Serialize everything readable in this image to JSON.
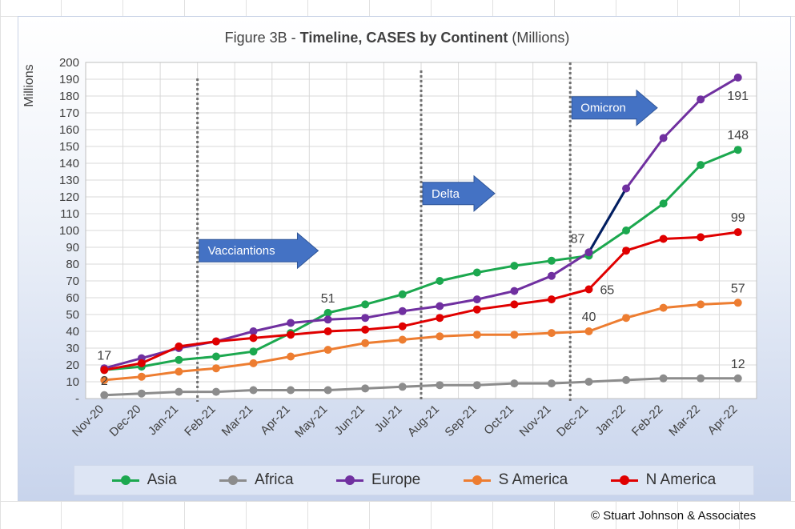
{
  "chart_data": {
    "type": "line",
    "title_prefix": "Figure 3B - ",
    "title_bold": "Timeline, CASES by Continent",
    "title_suffix": " (Millions)",
    "ylabel": "Millions",
    "ylim": [
      0,
      200
    ],
    "y_ticks": [
      "-",
      "10",
      "20",
      "30",
      "40",
      "50",
      "60",
      "70",
      "80",
      "90",
      "100",
      "110",
      "120",
      "130",
      "140",
      "150",
      "160",
      "170",
      "180",
      "190",
      "200"
    ],
    "categories": [
      "Nov-20",
      "Dec-20",
      "Jan-21",
      "Feb-21",
      "Mar-21",
      "Apr-21",
      "May-21",
      "Jun-21",
      "Jul-21",
      "Aug-21",
      "Sep-21",
      "Oct-21",
      "Nov-21",
      "Dec-21",
      "Jan-22",
      "Feb-22",
      "Mar-22",
      "Apr-22"
    ],
    "grid": true,
    "legend_position": "bottom",
    "series": [
      {
        "name": "Asia",
        "color": "#1ca84f",
        "values": [
          17,
          19,
          23,
          25,
          28,
          39,
          51,
          56,
          62,
          70,
          75,
          79,
          82,
          85,
          100,
          116,
          139,
          148
        ]
      },
      {
        "name": "Africa",
        "color": "#8c8c8c",
        "values": [
          2,
          3,
          4,
          4,
          5,
          5,
          5,
          6,
          7,
          8,
          8,
          9,
          9,
          10,
          11,
          12,
          12,
          12
        ]
      },
      {
        "name": "Europe",
        "color": "#7030a0",
        "values": [
          18,
          24,
          30,
          34,
          40,
          45,
          47,
          48,
          52,
          55,
          59,
          64,
          73,
          87,
          125,
          155,
          178,
          191
        ]
      },
      {
        "name": "S America",
        "color": "#ed7d31",
        "values": [
          11,
          13,
          16,
          18,
          21,
          25,
          29,
          33,
          35,
          37,
          38,
          38,
          39,
          40,
          48,
          54,
          56,
          57
        ]
      },
      {
        "name": "N America",
        "color": "#e00000",
        "values": [
          17,
          21,
          31,
          34,
          36,
          38,
          40,
          41,
          43,
          48,
          53,
          56,
          59,
          65,
          88,
          95,
          96,
          99
        ]
      }
    ],
    "connector": {
      "color": "#002060",
      "from_index": 13,
      "to_index": 14,
      "series": "Europe"
    },
    "annotations": [
      {
        "text": "17",
        "x": "Nov-20",
        "y": 17,
        "anchor": "above"
      },
      {
        "text": "2",
        "x": "Nov-20",
        "y": 2,
        "anchor": "above"
      },
      {
        "text": "51",
        "x": "May-21",
        "y": 51,
        "anchor": "above"
      },
      {
        "text": "87",
        "x": "Dec-21",
        "y": 87,
        "anchor": "above-left"
      },
      {
        "text": "65",
        "x": "Dec-21",
        "y": 65,
        "anchor": "right"
      },
      {
        "text": "40",
        "x": "Dec-21",
        "y": 40,
        "anchor": "above"
      },
      {
        "text": "191",
        "x": "Apr-22",
        "y": 191,
        "anchor": "below"
      },
      {
        "text": "148",
        "x": "Apr-22",
        "y": 148,
        "anchor": "above"
      },
      {
        "text": "99",
        "x": "Apr-22",
        "y": 99,
        "anchor": "above"
      },
      {
        "text": "57",
        "x": "Apr-22",
        "y": 57,
        "anchor": "above"
      },
      {
        "text": "12",
        "x": "Apr-22",
        "y": 12,
        "anchor": "above"
      }
    ],
    "event_lines": [
      {
        "name": "Vacciantions",
        "after": "Jan-21"
      },
      {
        "name": "Delta",
        "after": "Jul-21"
      },
      {
        "name": "Omicron",
        "after": "Nov-21"
      }
    ],
    "event_labels": [
      {
        "text": "Vacciantions",
        "x": "Jan-21",
        "y": 88
      },
      {
        "text": "Delta",
        "x": "Jul-21",
        "y": 122
      },
      {
        "text": "Omicron",
        "x": "Nov-21",
        "y": 173
      }
    ]
  },
  "copyright": "© Stuart Johnson & Associates",
  "colors": {
    "arrow_fill": "#4472c4",
    "arrow_stroke": "#2f5597",
    "plot_bg": "#ffffff"
  }
}
